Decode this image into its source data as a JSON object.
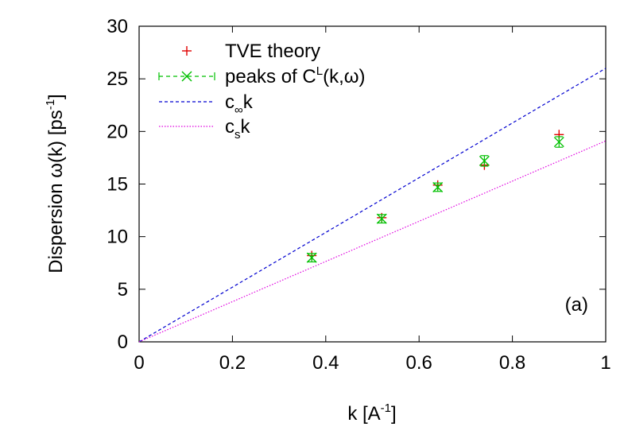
{
  "chart_data": {
    "type": "scatter",
    "xlabel": {
      "base": "k [A",
      "sup": "-1",
      "tail": "]"
    },
    "ylabel": {
      "base": "Dispersion ω(k) [ps",
      "sup": "-1",
      "tail": "]"
    },
    "xlim": [
      0,
      1
    ],
    "ylim": [
      0,
      30
    ],
    "xticks": [
      0,
      0.2,
      0.4,
      0.6,
      0.8,
      1
    ],
    "xtick_labels": [
      "0",
      "0.2",
      "0.4",
      "0.6",
      "0.8",
      "1"
    ],
    "yticks": [
      0,
      5,
      10,
      15,
      20,
      25,
      30
    ],
    "ytick_labels": [
      "0",
      "5",
      "10",
      "15",
      "20",
      "25",
      "30"
    ],
    "grid": false,
    "legend_position": "top-left",
    "panel_label": "(a)",
    "series": [
      {
        "name": "TVE theory",
        "kind": "points",
        "marker": "plus",
        "color": "#e00000",
        "x": [
          0.37,
          0.52,
          0.64,
          0.74,
          0.9
        ],
        "y": [
          8.2,
          11.8,
          14.9,
          16.8,
          19.7
        ]
      },
      {
        "name": {
          "base": "peaks of C",
          "sup": "L",
          "tail": "(k,ω)"
        },
        "kind": "errorpoints",
        "marker": "x",
        "color": "#00c000",
        "x": [
          0.37,
          0.52,
          0.64,
          0.74,
          0.9
        ],
        "y": [
          8.0,
          11.7,
          14.7,
          17.2,
          19.0
        ],
        "err": [
          0.4,
          0.4,
          0.4,
          0.5,
          0.5
        ]
      },
      {
        "name": {
          "base": "c",
          "sub": "∞",
          "tail": "k"
        },
        "kind": "line",
        "dash": "dashed",
        "color": "#0000d0",
        "x": [
          0,
          1
        ],
        "y": [
          0,
          26
        ]
      },
      {
        "name": {
          "base": "c",
          "sub": "s",
          "tail": "k"
        },
        "kind": "line",
        "dash": "dotted",
        "color": "#e000e0",
        "x": [
          0,
          1
        ],
        "y": [
          0,
          19.1
        ]
      }
    ]
  }
}
